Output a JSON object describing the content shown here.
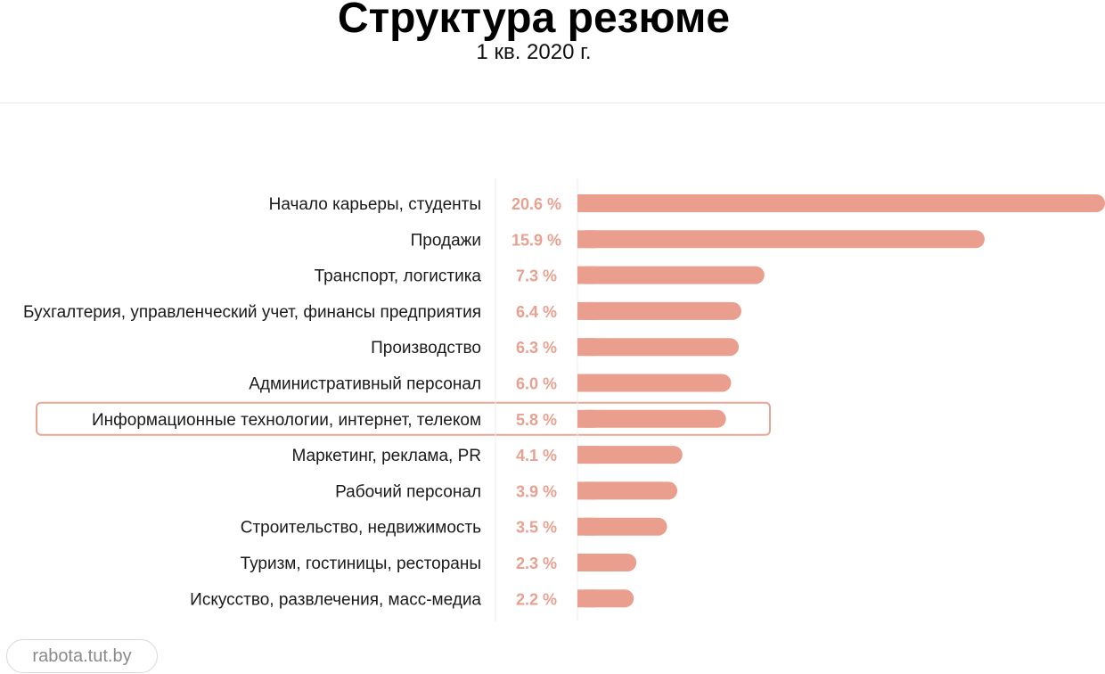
{
  "chart_data": {
    "type": "bar",
    "orientation": "horizontal",
    "title": "Структура резюме",
    "subtitle": "1 кв. 2020 г.",
    "categories": [
      "Начало карьеры, студенты",
      "Продажи",
      "Транспорт, логистика",
      "Бухгалтерия, управленческий учет, финансы предприятия",
      "Производство",
      "Административный персонал",
      "Информационные технологии, интернет, телеком",
      "Маркетинг, реклама, PR",
      "Рабочий персонал",
      "Строительство, недвижимость",
      "Туризм, гостиницы, рестораны",
      "Искусство, развлечения, масс-медиа"
    ],
    "values": [
      20.6,
      15.9,
      7.3,
      6.4,
      6.3,
      6.0,
      5.8,
      4.1,
      3.9,
      3.5,
      2.3,
      2.2
    ],
    "value_labels": [
      "20.6 %",
      "15.9 %",
      "7.3 %",
      "6.4 %",
      "6.3 %",
      "6.0 %",
      "5.8 %",
      "4.1 %",
      "3.9 %",
      "3.5 %",
      "2.3 %",
      "2.2 %"
    ],
    "highlighted_category": "Информационные технологии, интернет, телеком",
    "xlabel": "",
    "ylabel": "",
    "xlim": [
      0,
      20.6
    ],
    "grid": false,
    "legend": "none",
    "bar_color": "#ea9e8e",
    "value_label_color": "#e8a090",
    "highlight_border_color": "#e9a596"
  },
  "source": "rabota.tut.by"
}
